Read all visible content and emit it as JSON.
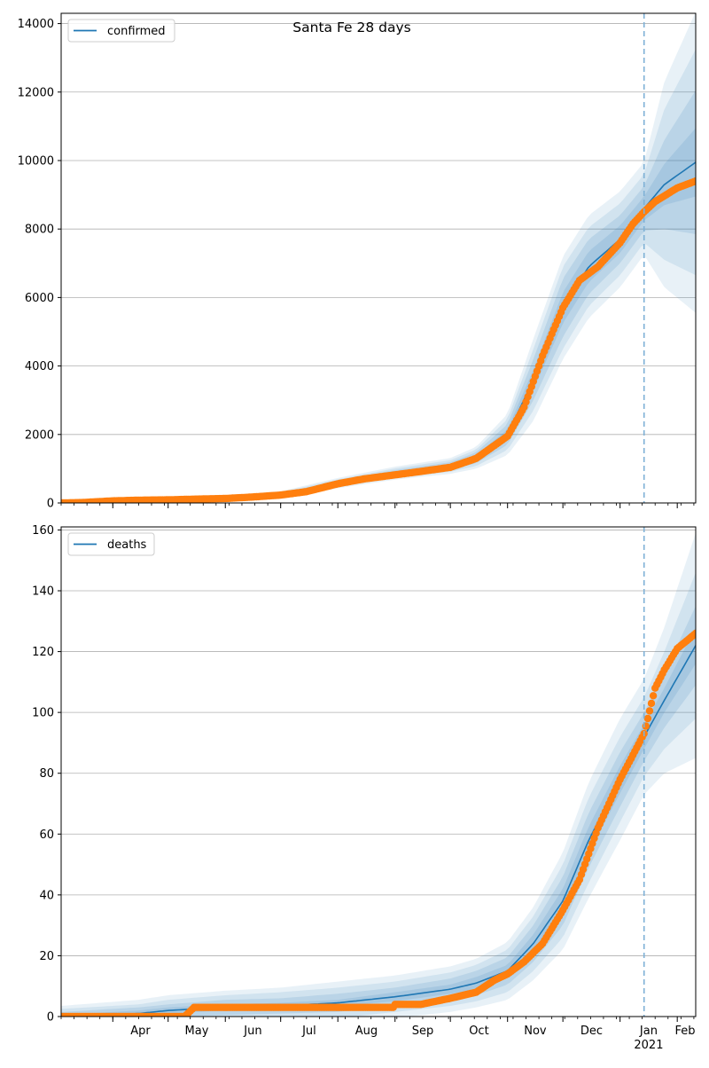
{
  "chart_data": {
    "title": "Santa Fe 28 days",
    "type": "line",
    "x_axis": {
      "kind": "date",
      "range": [
        "2020-03-04",
        "2021-02-11"
      ],
      "month_labels": [
        "Apr",
        "May",
        "Jun",
        "Jul",
        "Aug",
        "Sep",
        "Oct",
        "Nov",
        "Dec",
        "Jan",
        "Feb"
      ],
      "month_dates": [
        "2020-04-01",
        "2020-05-01",
        "2020-06-01",
        "2020-07-01",
        "2020-08-01",
        "2020-09-01",
        "2020-10-01",
        "2020-11-01",
        "2020-12-01",
        "2021-01-01",
        "2021-02-01"
      ],
      "year_label": "2021",
      "forecast_start": "2021-01-14"
    },
    "colors": {
      "model_line": "#1f77b4",
      "observed_points": "#ff7f0e",
      "band": "#1f77b4",
      "forecast_line": "#7fb1d6",
      "grid": "#b0b0b0"
    },
    "panels": [
      {
        "legend": "confirmed",
        "legend_position": "upper left",
        "ylim": [
          0,
          14300
        ],
        "yticks": [
          0,
          2000,
          4000,
          6000,
          8000,
          10000,
          12000,
          14000
        ],
        "grid": "horizontal",
        "model_curve": {
          "dates": [
            "2020-03-04",
            "2020-04-01",
            "2020-05-01",
            "2020-06-01",
            "2020-07-01",
            "2020-08-01",
            "2020-09-01",
            "2020-10-01",
            "2020-10-15",
            "2020-11-01",
            "2020-11-15",
            "2020-12-01",
            "2020-12-15",
            "2021-01-01",
            "2021-01-14",
            "2021-01-25",
            "2021-02-11"
          ],
          "values": [
            0,
            60,
            90,
            130,
            230,
            580,
            870,
            1080,
            1320,
            2000,
            3600,
            5700,
            6900,
            7700,
            8600,
            9300,
            9950
          ],
          "band_widths": [
            [
              0,
              10,
              15,
              20,
              25,
              35,
              45,
              55,
              80,
              150,
              300,
              450,
              450,
              400,
              350,
              600,
              1000
            ],
            [
              0,
              20,
              30,
              40,
              50,
              70,
              90,
              110,
              160,
              300,
              600,
              850,
              800,
              700,
              650,
              1300,
              2100
            ],
            [
              0,
              35,
              50,
              65,
              80,
              110,
              140,
              170,
              240,
              450,
              900,
              1200,
              1150,
              1050,
              1000,
              2200,
              3300
            ],
            [
              0,
              50,
              70,
              90,
              110,
              150,
              190,
              230,
              320,
              600,
              1200,
              1500,
              1500,
              1400,
              1350,
              3000,
              4400
            ]
          ]
        },
        "observed": {
          "dates": [
            "2020-03-04",
            "2020-03-15",
            "2020-04-01",
            "2020-04-15",
            "2020-05-01",
            "2020-05-15",
            "2020-06-01",
            "2020-06-15",
            "2020-07-01",
            "2020-07-15",
            "2020-08-01",
            "2020-08-15",
            "2020-09-01",
            "2020-09-15",
            "2020-10-01",
            "2020-10-15",
            "2020-11-01",
            "2020-11-10",
            "2020-11-20",
            "2020-12-01",
            "2020-12-10",
            "2020-12-20",
            "2021-01-01",
            "2021-01-08",
            "2021-01-14",
            "2021-01-20",
            "2021-02-01",
            "2021-02-11"
          ],
          "values": [
            0,
            10,
            60,
            80,
            90,
            110,
            130,
            170,
            230,
            330,
            560,
            700,
            820,
            920,
            1040,
            1300,
            1950,
            2800,
            4300,
            5700,
            6500,
            6900,
            7600,
            8150,
            8500,
            8800,
            9200,
            9400
          ]
        }
      },
      {
        "legend": "deaths",
        "legend_position": "upper left",
        "ylim": [
          0,
          161
        ],
        "yticks": [
          0,
          20,
          40,
          60,
          80,
          100,
          120,
          140,
          160
        ],
        "grid": "horizontal",
        "model_curve": {
          "dates": [
            "2020-03-04",
            "2020-04-15",
            "2020-05-01",
            "2020-06-01",
            "2020-07-01",
            "2020-08-01",
            "2020-09-01",
            "2020-10-01",
            "2020-10-15",
            "2020-11-01",
            "2020-11-15",
            "2020-12-01",
            "2020-12-15",
            "2021-01-01",
            "2021-01-14",
            "2021-01-25",
            "2021-02-11"
          ],
          "values": [
            0,
            1,
            2,
            3,
            3.5,
            4.5,
            6.5,
            9,
            11,
            15,
            24,
            38,
            58,
            78,
            92,
            104,
            122
          ],
          "band_widths": [
            [
              0.5,
              1,
              1,
              1,
              1,
              1,
              1.5,
              1.5,
              2,
              2,
              3,
              4,
              4.5,
              4.5,
              4,
              4,
              6
            ],
            [
              1.5,
              2,
              2,
              2.5,
              2.5,
              3,
              3,
              3.5,
              4,
              4.5,
              6,
              8,
              9,
              9,
              8,
              9,
              13
            ],
            [
              2.5,
              3,
              3.5,
              4,
              4.5,
              5,
              5,
              5.5,
              6,
              7,
              9,
              12,
              14,
              14,
              13,
              16,
              24
            ],
            [
              3.5,
              4.5,
              5,
              5.5,
              6,
              7,
              7,
              7.5,
              8,
              9.5,
              12,
              16,
              19,
              20,
              19,
              24,
              37
            ]
          ]
        },
        "observed": {
          "dates": [
            "2020-03-04",
            "2020-05-10",
            "2020-05-15",
            "2020-06-01",
            "2020-07-01",
            "2020-08-01",
            "2020-08-31",
            "2020-09-01",
            "2020-09-15",
            "2020-10-01",
            "2020-10-15",
            "2020-10-25",
            "2020-11-01",
            "2020-11-10",
            "2020-11-20",
            "2020-12-01",
            "2020-12-10",
            "2020-12-20",
            "2021-01-01",
            "2021-01-08",
            "2021-01-14",
            "2021-01-20",
            "2021-01-25",
            "2021-02-01",
            "2021-02-11"
          ],
          "values": [
            0,
            0,
            3,
            3,
            3,
            3,
            3,
            4,
            4,
            6,
            8,
            12,
            14,
            18,
            24,
            35,
            45,
            62,
            78,
            86,
            93,
            108,
            114,
            121,
            126
          ]
        }
      }
    ]
  }
}
